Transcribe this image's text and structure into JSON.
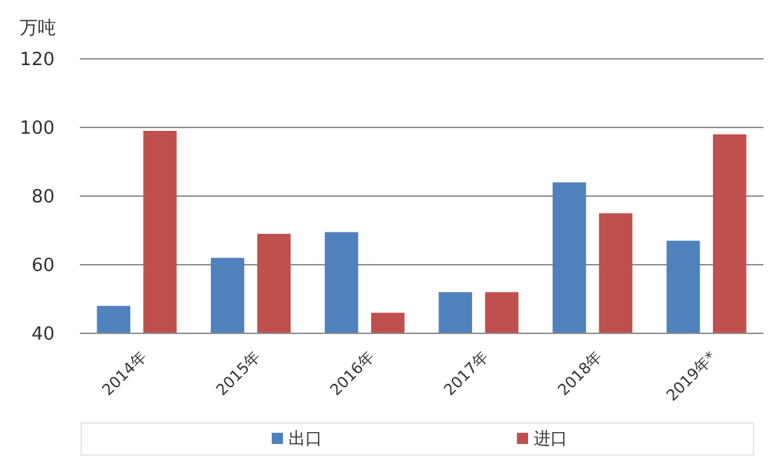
{
  "chart_data": {
    "type": "bar",
    "ylabel": "万吨",
    "categories": [
      "2014年",
      "2015年",
      "2016年",
      "2017年",
      "2018年",
      "2019年*"
    ],
    "series": [
      {
        "name": "出口",
        "color": "#4f81bd",
        "values": [
          48,
          62,
          69.5,
          52,
          84,
          67
        ]
      },
      {
        "name": "进口",
        "color": "#c0504d",
        "values": [
          99,
          69,
          46,
          52,
          75,
          98
        ]
      }
    ],
    "ylim": [
      40,
      120
    ],
    "yticks": [
      40,
      60,
      80,
      100,
      120
    ],
    "grid": "y",
    "legend": "bottom"
  }
}
